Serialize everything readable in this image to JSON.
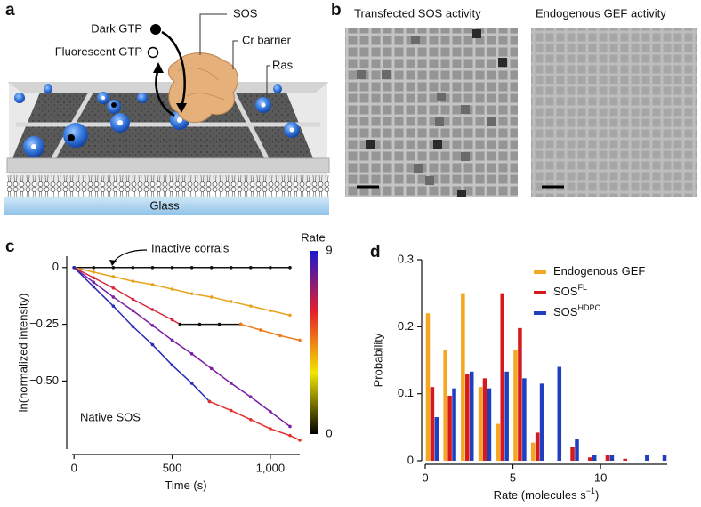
{
  "panel_labels": [
    "a",
    "b",
    "c",
    "d"
  ],
  "schematic": {
    "dark_gtp": "Dark GTP",
    "fluorescent_gtp": "Fluorescent GTP",
    "sos": "SOS",
    "cr_barrier": "Cr barrier",
    "ras": "Ras",
    "glass": "Glass"
  },
  "micrographs": {
    "titles": [
      "Transfected SOS activity",
      "Endogenous GEF activity"
    ]
  },
  "chart_data": [
    {
      "type": "line",
      "xlabel": "Time (s)",
      "ylabel": "ln(normalized intensity)",
      "xlim": [
        -10,
        1150
      ],
      "xticks": [
        0,
        500,
        {
          "value": 1000,
          "label": "1,000"
        }
      ],
      "ylim": [
        -0.8,
        0.05
      ],
      "yticks": [
        0,
        {
          "value": -0.25,
          "label": "−0.25"
        },
        {
          "value": -0.5,
          "label": "−0.50"
        }
      ],
      "annotations": [
        "Inactive corrals",
        "Native SOS"
      ],
      "colorbar": {
        "label": "Rate",
        "ticks": [
          0,
          9
        ],
        "colors": [
          "#000000",
          "#f2e600",
          "#e8202a",
          "#1a1ad0"
        ]
      },
      "series": [
        {
          "color": "#111111",
          "x": [
            0,
            100,
            200,
            300,
            400,
            500,
            600,
            700,
            800,
            900,
            1000,
            1100
          ],
          "values": [
            0,
            0,
            0,
            0,
            0,
            0,
            0,
            0,
            0,
            0,
            0,
            0
          ]
        },
        {
          "color": "#e8a31c",
          "x": [
            0,
            100,
            200,
            300,
            400,
            500,
            600,
            700,
            800,
            900,
            1000,
            1100
          ],
          "values": [
            0,
            -0.02,
            -0.04,
            -0.06,
            -0.075,
            -0.095,
            -0.115,
            -0.13,
            -0.15,
            -0.17,
            -0.19,
            -0.21
          ]
        },
        {
          "color": "#d8283a",
          "x": [
            0,
            100,
            200,
            300,
            400,
            500,
            540
          ],
          "values": [
            0,
            -0.045,
            -0.09,
            -0.14,
            -0.185,
            -0.23,
            -0.25
          ]
        },
        {
          "color": "#111111",
          "x": [
            540,
            640,
            740,
            850
          ],
          "values": [
            -0.25,
            -0.25,
            -0.25,
            -0.25
          ]
        },
        {
          "color": "#f07a1a",
          "x": [
            850,
            950,
            1050,
            1150
          ],
          "values": [
            -0.25,
            -0.275,
            -0.3,
            -0.32
          ]
        },
        {
          "color": "#7a1fa0",
          "x": [
            0,
            100,
            200,
            300,
            400,
            500,
            600,
            700,
            800,
            900,
            1000,
            1100
          ],
          "values": [
            0,
            -0.065,
            -0.13,
            -0.19,
            -0.255,
            -0.32,
            -0.38,
            -0.445,
            -0.51,
            -0.57,
            -0.635,
            -0.7
          ]
        },
        {
          "color": "#2a2ab8",
          "x": [
            0,
            100,
            200,
            300,
            400,
            500,
            600,
            690
          ],
          "values": [
            0,
            -0.085,
            -0.17,
            -0.26,
            -0.34,
            -0.43,
            -0.51,
            -0.59
          ]
        },
        {
          "color": "#e0302a",
          "x": [
            690,
            800,
            900,
            1000,
            1100,
            1150
          ],
          "values": [
            -0.59,
            -0.63,
            -0.67,
            -0.71,
            -0.74,
            -0.76
          ]
        }
      ]
    },
    {
      "type": "bar",
      "xlabel": "Rate (molecules s",
      "xlabel_sup": "−1",
      "xlabel_end": ")",
      "ylabel": "Probability",
      "xlim": [
        0,
        13.8
      ],
      "xticks": [
        0,
        5,
        10
      ],
      "ylim": [
        0,
        0.3
      ],
      "yticks": [
        0,
        0.1,
        0.2,
        0.3
      ],
      "legend": "upper right",
      "x": [
        0.4,
        1.4,
        2.4,
        3.4,
        4.4,
        5.4,
        6.4,
        7.4,
        8.4,
        9.4,
        10.4,
        11.4,
        12.4,
        13.4
      ],
      "series": [
        {
          "name": "Endogenous GEF",
          "color": "#f5a623",
          "values": [
            0.22,
            0.165,
            0.25,
            0.11,
            0.055,
            0.165,
            0.027,
            0,
            0,
            0,
            0,
            0,
            0,
            0
          ]
        },
        {
          "name": "SOS",
          "name_sup": "FL",
          "color": "#d7191c",
          "values": [
            0.11,
            0.097,
            0.13,
            0.123,
            0.25,
            0.198,
            0.042,
            0,
            0.02,
            0.005,
            0.008,
            0.003,
            0,
            0
          ]
        },
        {
          "name": "SOS",
          "name_sup": "HDPC",
          "color": "#1f3fbf",
          "values": [
            0.065,
            0.108,
            0.133,
            0.108,
            0.133,
            0.123,
            0.115,
            0.14,
            0.033,
            0.008,
            0.008,
            0,
            0.008,
            0.008
          ]
        }
      ]
    }
  ]
}
